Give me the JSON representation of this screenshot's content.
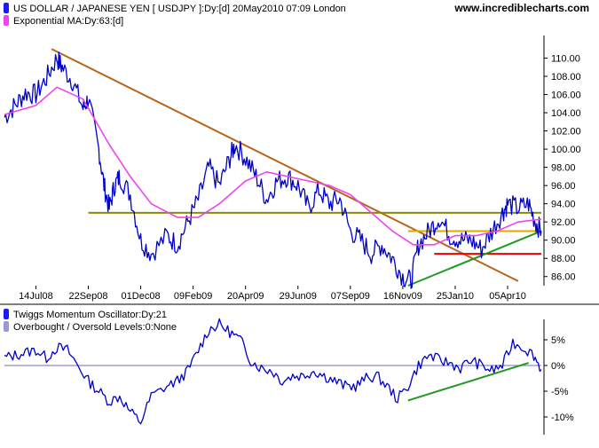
{
  "chart_data": [
    {
      "type": "line",
      "title": "US DOLLAR / JAPANESE YEN [ USDJPY ]:Dy:[d]  20May2010 07:09 London",
      "website": "www.incrediblecharts.com",
      "ylim": [
        85,
        112
      ],
      "y_ticks": [
        "110.00",
        "108.00",
        "106.00",
        "104.00",
        "102.00",
        "100.00",
        "98.00",
        "96.00",
        "94.00",
        "92.00",
        "90.00",
        "88.00",
        "86.00"
      ],
      "y_tick_values": [
        110,
        108,
        106,
        104,
        102,
        100,
        98,
        96,
        94,
        92,
        90,
        88,
        86
      ],
      "x_ticks": [
        "14Jul08",
        "22Sep08",
        "01Dec08",
        "09Feb09",
        "20Apr09",
        "29Jun09",
        "07Sep09",
        "16Nov09",
        "25Jan10",
        "05Apr10"
      ],
      "grid": false,
      "legend_position": "top-left",
      "colors": {
        "price": "#0000cc",
        "ma": "#ee44ee",
        "main_trend": "#b8651b",
        "support": "#8b8b00",
        "resistance": "#ddaa00",
        "red_level": "#ee0000",
        "green_trend": "#229922",
        "icon": "#1a1aff"
      },
      "series": [
        {
          "name": "US DOLLAR / JAPANESE YEN [ USDJPY ]:Dy:[d]  20May2010 07:09 London",
          "x": [
            "2008-06-02",
            "2008-06-16",
            "2008-06-30",
            "2008-07-14",
            "2008-07-28",
            "2008-08-11",
            "2008-08-18",
            "2008-09-01",
            "2008-09-15",
            "2008-09-22",
            "2008-10-06",
            "2008-10-13",
            "2008-10-20",
            "2008-10-27",
            "2008-11-03",
            "2008-11-17",
            "2008-12-01",
            "2008-12-15",
            "2009-01-05",
            "2009-01-19",
            "2009-02-02",
            "2009-02-16",
            "2009-03-02",
            "2009-03-16",
            "2009-03-30",
            "2009-04-06",
            "2009-04-20",
            "2009-05-04",
            "2009-05-18",
            "2009-06-01",
            "2009-06-15",
            "2009-06-29",
            "2009-07-13",
            "2009-07-27",
            "2009-08-10",
            "2009-08-24",
            "2009-09-07",
            "2009-09-21",
            "2009-10-05",
            "2009-10-19",
            "2009-11-02",
            "2009-11-16",
            "2009-11-27",
            "2009-12-07",
            "2009-12-21",
            "2010-01-04",
            "2010-01-18",
            "2010-02-01",
            "2010-02-15",
            "2010-03-01",
            "2010-03-15",
            "2010-03-29",
            "2010-04-05",
            "2010-04-19",
            "2010-05-03",
            "2010-05-12",
            "2010-05-20"
          ],
          "values": [
            103.5,
            104.8,
            106.2,
            106.0,
            107.8,
            110.0,
            109.0,
            107.5,
            104.5,
            105.5,
            100.0,
            96.0,
            93.5,
            96.0,
            97.0,
            95.0,
            90.0,
            88.5,
            90.5,
            89.5,
            92.0,
            94.5,
            98.0,
            96.0,
            99.0,
            100.5,
            99.0,
            97.0,
            94.5,
            96.5,
            97.0,
            96.0,
            93.5,
            95.5,
            94.0,
            94.5,
            91.0,
            90.0,
            88.5,
            89.5,
            88.0,
            86.0,
            85.5,
            89.5,
            91.0,
            92.5,
            90.5,
            90.0,
            90.0,
            89.0,
            91.0,
            93.0,
            94.0,
            93.5,
            94.0,
            92.0,
            91.0
          ]
        },
        {
          "name": "Exponential MA:Dy:63:[d]",
          "x": [
            "2008-06-02",
            "2008-07-14",
            "2008-08-11",
            "2008-09-15",
            "2008-10-20",
            "2008-11-17",
            "2008-12-15",
            "2009-01-19",
            "2009-02-16",
            "2009-03-16",
            "2009-04-20",
            "2009-05-18",
            "2009-06-15",
            "2009-07-13",
            "2009-08-10",
            "2009-09-07",
            "2009-10-05",
            "2009-11-02",
            "2009-11-30",
            "2009-12-28",
            "2010-01-25",
            "2010-02-22",
            "2010-03-22",
            "2010-04-19",
            "2010-05-20"
          ],
          "values": [
            103.8,
            104.8,
            106.8,
            105.5,
            100.5,
            97.0,
            94.0,
            92.5,
            92.5,
            94.0,
            96.5,
            97.5,
            97.0,
            96.5,
            96.0,
            95.0,
            93.0,
            91.0,
            89.5,
            89.5,
            90.5,
            90.5,
            91.0,
            92.0,
            92.3
          ]
        }
      ],
      "annotations": [
        {
          "type": "trendline",
          "label": "",
          "x": [
            "2008-08-04",
            "2010-04-19"
          ],
          "y": [
            111.0,
            85.5
          ]
        },
        {
          "type": "horizontal",
          "label": "",
          "x": [
            "2008-09-22",
            "2010-05-20"
          ],
          "y": [
            93.0,
            93.0
          ]
        },
        {
          "type": "horizontal",
          "label": "",
          "x": [
            "2009-11-23",
            "2010-05-20"
          ],
          "y": [
            91.0,
            91.0
          ]
        },
        {
          "type": "horizontal",
          "label": "",
          "x": [
            "2009-12-28",
            "2010-05-20"
          ],
          "y": [
            88.5,
            88.5
          ]
        },
        {
          "type": "trendline",
          "label": "",
          "x": [
            "2009-11-23",
            "2010-05-20"
          ],
          "y": [
            85.0,
            91.0
          ]
        }
      ]
    },
    {
      "type": "line",
      "ylim": [
        -12,
        8
      ],
      "y_ticks": [
        "5%",
        "0%",
        "-5%",
        "-10%"
      ],
      "y_tick_values": [
        5,
        0,
        -5,
        -10
      ],
      "colors": {
        "oscillator": "#0000cc",
        "zero_line": "#8a8ad0",
        "green_trend": "#229922",
        "icon": "#1a1aff",
        "level_icon": "#9999dd"
      },
      "series": [
        {
          "name": "Twiggs Momentum Oscillator:Dy:21",
          "x": [
            "2008-06-02",
            "2008-06-16",
            "2008-06-30",
            "2008-07-14",
            "2008-07-28",
            "2008-08-11",
            "2008-08-25",
            "2008-09-08",
            "2008-09-22",
            "2008-10-06",
            "2008-10-20",
            "2008-11-03",
            "2008-11-17",
            "2008-12-01",
            "2008-12-15",
            "2009-01-05",
            "2009-01-19",
            "2009-02-02",
            "2009-02-16",
            "2009-03-02",
            "2009-03-16",
            "2009-03-30",
            "2009-04-13",
            "2009-04-27",
            "2009-05-11",
            "2009-05-25",
            "2009-06-08",
            "2009-06-22",
            "2009-07-06",
            "2009-07-20",
            "2009-08-03",
            "2009-08-17",
            "2009-08-31",
            "2009-09-14",
            "2009-09-28",
            "2009-10-12",
            "2009-10-26",
            "2009-11-09",
            "2009-11-23",
            "2009-12-07",
            "2009-12-21",
            "2010-01-04",
            "2010-01-18",
            "2010-02-01",
            "2010-02-15",
            "2010-03-01",
            "2010-03-15",
            "2010-03-29",
            "2010-04-12",
            "2010-04-26",
            "2010-05-10",
            "2010-05-20"
          ],
          "values": [
            1.5,
            2.0,
            2.5,
            3.0,
            1.5,
            3.5,
            3.0,
            0.0,
            -3.0,
            -5.0,
            -7.0,
            -6.0,
            -9.0,
            -11.0,
            -6.0,
            -4.0,
            -3.0,
            -1.0,
            3.0,
            7.0,
            8.0,
            6.5,
            5.0,
            1.0,
            -0.5,
            -1.0,
            -3.0,
            -2.0,
            -2.0,
            -1.0,
            -2.0,
            -3.0,
            -4.0,
            -4.0,
            -2.5,
            -2.0,
            -4.0,
            -6.5,
            -4.0,
            0.0,
            2.0,
            1.0,
            0.5,
            -0.5,
            1.0,
            0.0,
            -1.0,
            0.0,
            4.5,
            3.5,
            2.0,
            -0.8
          ]
        },
        {
          "name": "Overbought / Oversold Levels:0:None",
          "x": [
            "2008-06-02",
            "2010-05-20"
          ],
          "values": [
            0,
            0
          ]
        }
      ],
      "annotations": [
        {
          "type": "trendline",
          "label": "",
          "x": [
            "2009-11-23",
            "2010-05-03"
          ],
          "y": [
            -6.8,
            0.5
          ]
        }
      ]
    }
  ]
}
